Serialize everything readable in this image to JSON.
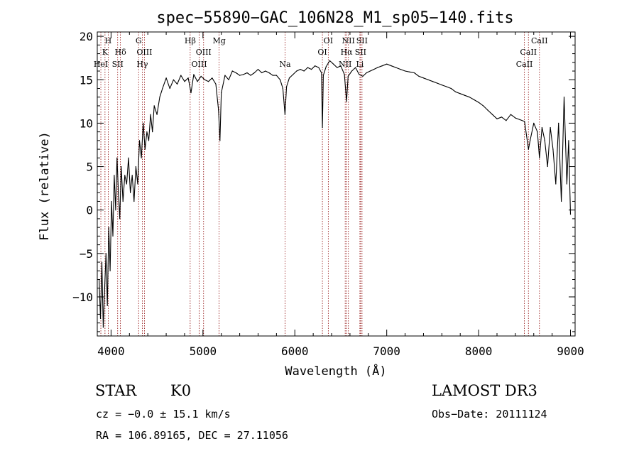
{
  "chart_data": {
    "type": "line",
    "title": "spec−55890−GAC_106N28_M1_sp05−140.fits",
    "xlabel": "Wavelength (Å)",
    "ylabel": "Flux (relative)",
    "xlim": [
      3850,
      9050
    ],
    "ylim": [
      -14.5,
      20.5
    ],
    "x_ticks": [
      4000,
      5000,
      6000,
      7000,
      8000,
      9000
    ],
    "y_ticks": [
      -10,
      -5,
      0,
      5,
      10,
      15,
      20
    ],
    "y_tick_labels": [
      "−10",
      "−5",
      "0",
      "5",
      "10",
      "15",
      "20"
    ],
    "series": [
      {
        "name": "flux",
        "color": "#000000",
        "x": [
          3870,
          3885,
          3900,
          3915,
          3930,
          3945,
          3960,
          3975,
          3990,
          4005,
          4020,
          4035,
          4050,
          4065,
          4080,
          4095,
          4110,
          4130,
          4150,
          4170,
          4190,
          4210,
          4230,
          4250,
          4270,
          4290,
          4310,
          4330,
          4350,
          4370,
          4390,
          4410,
          4430,
          4450,
          4470,
          4500,
          4530,
          4560,
          4600,
          4640,
          4680,
          4720,
          4760,
          4800,
          4840,
          4870,
          4900,
          4940,
          4980,
          5020,
          5060,
          5100,
          5140,
          5170,
          5185,
          5200,
          5240,
          5280,
          5320,
          5360,
          5400,
          5440,
          5480,
          5520,
          5560,
          5600,
          5640,
          5680,
          5720,
          5760,
          5800,
          5840,
          5870,
          5893,
          5910,
          5940,
          5980,
          6020,
          6060,
          6100,
          6140,
          6180,
          6220,
          6260,
          6290,
          6300,
          6310,
          6340,
          6380,
          6420,
          6460,
          6500,
          6540,
          6563,
          6580,
          6620,
          6660,
          6700,
          6740,
          6780,
          6820,
          6860,
          6900,
          6950,
          7000,
          7050,
          7100,
          7150,
          7200,
          7250,
          7300,
          7350,
          7400,
          7450,
          7500,
          7550,
          7600,
          7650,
          7700,
          7750,
          7800,
          7850,
          7900,
          7950,
          8000,
          8050,
          8100,
          8150,
          8200,
          8250,
          8300,
          8350,
          8400,
          8450,
          8500,
          8542,
          8560,
          8600,
          8640,
          8662,
          8690,
          8720,
          8750,
          8780,
          8810,
          8840,
          8870,
          8900,
          8930,
          8960,
          8980,
          9000
        ],
        "y": [
          -8,
          -12.5,
          -6,
          -13.5,
          -9,
          -5,
          -11,
          -2,
          -7,
          1,
          -3,
          4,
          0,
          6,
          2,
          -1,
          5,
          1,
          4,
          3,
          6,
          2,
          4,
          1,
          5,
          3,
          8,
          6,
          10,
          7,
          9,
          8,
          11,
          9,
          12,
          11,
          13,
          14,
          15.2,
          14,
          15,
          14.5,
          15.5,
          14.8,
          15.2,
          13.5,
          15.6,
          14.8,
          15.4,
          15,
          14.8,
          15.2,
          14.5,
          11.5,
          8,
          13.5,
          15.5,
          15,
          16,
          15.8,
          15.5,
          15.6,
          15.8,
          15.5,
          15.8,
          16.2,
          15.8,
          16,
          15.8,
          15.5,
          15.5,
          15,
          14,
          11,
          14.2,
          15.2,
          15.6,
          16,
          16.2,
          16,
          16.4,
          16.2,
          16.6,
          16.4,
          15.8,
          9.5,
          15.5,
          16.5,
          17.2,
          16.8,
          16.4,
          16.6,
          15.6,
          12.5,
          15.4,
          16,
          16.4,
          15.6,
          15.4,
          15.8,
          16,
          16.2,
          16.4,
          16.6,
          16.8,
          16.6,
          16.4,
          16.2,
          16,
          15.9,
          15.8,
          15.4,
          15.2,
          15,
          14.8,
          14.6,
          14.4,
          14.2,
          14,
          13.6,
          13.4,
          13.2,
          13,
          12.7,
          12.4,
          12,
          11.5,
          11,
          10.5,
          10.7,
          10.3,
          11,
          10.6,
          10.4,
          10.2,
          7,
          8,
          10,
          9,
          6,
          9.5,
          8,
          5,
          9.5,
          7,
          3,
          10,
          1,
          13,
          3,
          8,
          -0.5
        ]
      }
    ],
    "line_color": "#8b0000",
    "lines": [
      {
        "x": 3934,
        "label": "K",
        "row": 1
      },
      {
        "x": 3969,
        "label": "H",
        "row": 0
      },
      {
        "x": 3889,
        "label": "HeI",
        "row": 2
      },
      {
        "x": 4072,
        "label": "SII",
        "row": 2
      },
      {
        "x": 4102,
        "label": "Hδ",
        "row": 1
      },
      {
        "x": 4300,
        "label": "G",
        "row": 0
      },
      {
        "x": 4340,
        "label": "Hγ",
        "row": 2
      },
      {
        "x": 4363,
        "label": "OIII",
        "row": 1
      },
      {
        "x": 4861,
        "label": "Hβ",
        "row": 0
      },
      {
        "x": 4959,
        "label": "OIII",
        "row": 2
      },
      {
        "x": 5007,
        "label": "OIII",
        "row": 1
      },
      {
        "x": 5176,
        "label": "Mg",
        "row": 0
      },
      {
        "x": 5893,
        "label": "Na",
        "row": 2
      },
      {
        "x": 6300,
        "label": "OI",
        "row": 1
      },
      {
        "x": 6364,
        "label": "OI",
        "row": 0
      },
      {
        "x": 6548,
        "label": "NII",
        "row": 2
      },
      {
        "x": 6563,
        "label": "Hα",
        "row": 1
      },
      {
        "x": 6583,
        "label": "NII",
        "row": 0
      },
      {
        "x": 6708,
        "label": "Li",
        "row": 2
      },
      {
        "x": 6716,
        "label": "SII",
        "row": 1
      },
      {
        "x": 6731,
        "label": "SII",
        "row": 0
      },
      {
        "x": 8498,
        "label": "CaII",
        "row": 2
      },
      {
        "x": 8542,
        "label": "CaII",
        "row": 1
      },
      {
        "x": 8662,
        "label": "CaII",
        "row": 0
      }
    ]
  },
  "info": {
    "class": "STAR",
    "subclass": "K0",
    "survey": "LAMOST DR3",
    "cz": "cz = −0.0 ± 15.1 km/s",
    "obs_date": "Obs−Date: 20111124",
    "coords": "RA = 106.89165, DEC =  27.11056"
  }
}
